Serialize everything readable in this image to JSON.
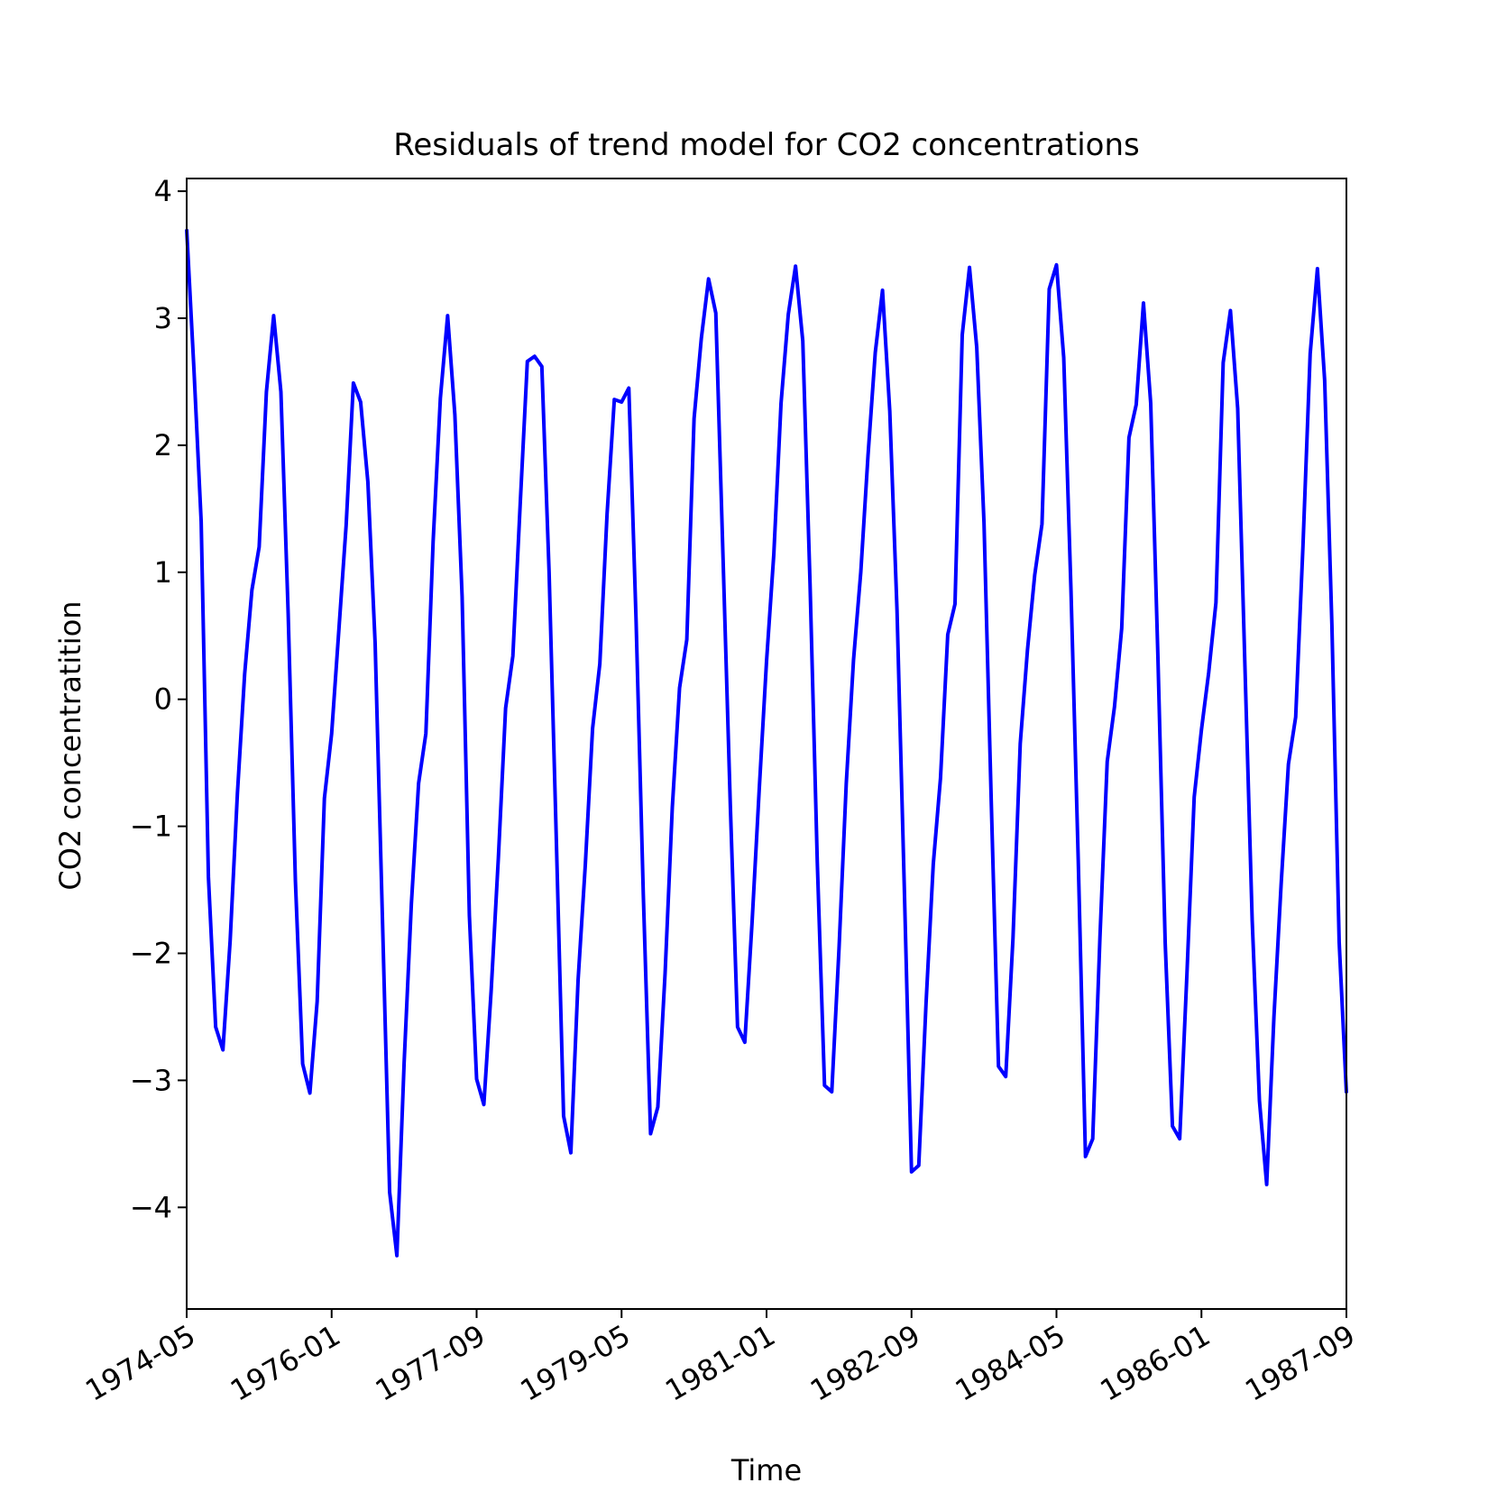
{
  "chart_data": {
    "type": "line",
    "title": "Residuals of trend model for CO2 concentrations",
    "xlabel": "Time",
    "ylabel": "CO2 concentratition",
    "xlim": [
      "1974-05",
      "1987-09"
    ],
    "ylim": [
      -4.8,
      4.1
    ],
    "yticks": [
      4,
      3,
      2,
      1,
      0,
      -1,
      -2,
      -3,
      -4
    ],
    "ytick_labels": [
      "4",
      "3",
      "2",
      "1",
      "0",
      "−1",
      "−2",
      "−3",
      "−4"
    ],
    "xticks": [
      "1974-05",
      "1976-01",
      "1977-09",
      "1979-05",
      "1981-01",
      "1982-09",
      "1984-05",
      "1986-01",
      "1987-09"
    ],
    "xtick_labels": [
      "1974-05",
      "1976-01",
      "1977-09",
      "1979-05",
      "1981-01",
      "1982-09",
      "1984-05",
      "1986-01",
      "1987-09"
    ],
    "grid": false,
    "series": [
      {
        "color": "#0000ff",
        "x": [
          "1974-05",
          "1974-06",
          "1974-07",
          "1974-08",
          "1974-09",
          "1974-10",
          "1974-11",
          "1974-12",
          "1975-01",
          "1975-02",
          "1975-03",
          "1975-04",
          "1975-05",
          "1975-06",
          "1975-07",
          "1975-08",
          "1975-09",
          "1975-10",
          "1975-11",
          "1975-12",
          "1976-01",
          "1976-02",
          "1976-03",
          "1976-04",
          "1976-05",
          "1976-06",
          "1976-07",
          "1976-08",
          "1976-09",
          "1976-10",
          "1976-11",
          "1976-12",
          "1977-01",
          "1977-02",
          "1977-03",
          "1977-04",
          "1977-05",
          "1977-06",
          "1977-07",
          "1977-08",
          "1977-09",
          "1977-10",
          "1977-11",
          "1977-12",
          "1978-01",
          "1978-02",
          "1978-03",
          "1978-04",
          "1978-05",
          "1978-06",
          "1978-07",
          "1978-08",
          "1978-09",
          "1978-10",
          "1978-11",
          "1978-12",
          "1979-01",
          "1979-02",
          "1979-03",
          "1979-04",
          "1979-05",
          "1979-06",
          "1979-07",
          "1979-08",
          "1979-09",
          "1979-10",
          "1979-11",
          "1979-12",
          "1980-01",
          "1980-02",
          "1980-03",
          "1980-04",
          "1980-05",
          "1980-06",
          "1980-07",
          "1980-08",
          "1980-09",
          "1980-10",
          "1980-11",
          "1980-12",
          "1981-01",
          "1981-02",
          "1981-03",
          "1981-04",
          "1981-05",
          "1981-06",
          "1981-07",
          "1981-08",
          "1981-09",
          "1981-10",
          "1981-11",
          "1981-12",
          "1982-01",
          "1982-02",
          "1982-03",
          "1982-04",
          "1982-05",
          "1982-06",
          "1982-07",
          "1982-08",
          "1982-09",
          "1982-10",
          "1982-11",
          "1982-12",
          "1983-01",
          "1983-02",
          "1983-03",
          "1983-04",
          "1983-05",
          "1983-06",
          "1983-07",
          "1983-08",
          "1983-09",
          "1983-10",
          "1983-11",
          "1983-12",
          "1984-01",
          "1984-02",
          "1984-03",
          "1984-04",
          "1984-05",
          "1984-06",
          "1984-07",
          "1984-08",
          "1984-09",
          "1984-10",
          "1984-11",
          "1984-12",
          "1985-01",
          "1985-02",
          "1985-03",
          "1985-04",
          "1985-05",
          "1985-06",
          "1985-07",
          "1985-08",
          "1985-09",
          "1985-10",
          "1985-11",
          "1985-12",
          "1986-01",
          "1986-02",
          "1986-03",
          "1986-04",
          "1986-05",
          "1986-06",
          "1986-07",
          "1986-08",
          "1986-09",
          "1986-10",
          "1986-11",
          "1986-12",
          "1987-01",
          "1987-02",
          "1987-03",
          "1987-04",
          "1987-05",
          "1987-06",
          "1987-07",
          "1987-08",
          "1987-09"
        ],
        "y": [
          3.7,
          2.6,
          1.4,
          -1.4,
          -2.58,
          -2.76,
          -1.9,
          -0.74,
          0.2,
          0.86,
          1.2,
          2.42,
          3.02,
          2.42,
          0.68,
          -1.43,
          -2.87,
          -3.1,
          -2.38,
          -0.78,
          -0.27,
          0.55,
          1.37,
          2.49,
          2.34,
          1.71,
          0.44,
          -1.71,
          -3.88,
          -4.38,
          -2.86,
          -1.61,
          -0.66,
          -0.27,
          1.24,
          2.37,
          3.02,
          2.24,
          0.81,
          -1.7,
          -2.99,
          -3.19,
          -2.3,
          -1.25,
          -0.07,
          0.34,
          1.52,
          2.66,
          2.7,
          2.62,
          1.0,
          -1.11,
          -3.28,
          -3.57,
          -2.21,
          -1.3,
          -0.23,
          0.28,
          1.46,
          2.36,
          2.34,
          2.45,
          0.62,
          -1.54,
          -3.42,
          -3.21,
          -2.16,
          -0.85,
          0.09,
          0.47,
          2.21,
          2.84,
          3.31,
          3.04,
          1.11,
          -0.83,
          -2.58,
          -2.7,
          -1.76,
          -0.7,
          0.3,
          1.14,
          2.33,
          3.03,
          3.41,
          2.82,
          0.91,
          -1.28,
          -3.04,
          -3.09,
          -1.96,
          -0.66,
          0.31,
          1.0,
          1.92,
          2.73,
          3.22,
          2.27,
          0.7,
          -1.47,
          -3.72,
          -3.67,
          -2.4,
          -1.3,
          -0.62,
          0.51,
          0.75,
          2.87,
          3.4,
          2.77,
          1.39,
          -0.8,
          -2.89,
          -2.97,
          -1.88,
          -0.35,
          0.39,
          0.98,
          1.38,
          3.23,
          3.42,
          2.69,
          0.86,
          -1.26,
          -3.6,
          -3.46,
          -1.87,
          -0.49,
          -0.06,
          0.56,
          2.06,
          2.32,
          3.12,
          2.33,
          0.32,
          -1.92,
          -3.36,
          -3.46,
          -2.16,
          -0.77,
          -0.24,
          0.21,
          0.76,
          2.65,
          3.06,
          2.29,
          0.26,
          -1.74,
          -3.16,
          -3.82,
          -2.5,
          -1.45,
          -0.51,
          -0.14,
          1.2,
          2.72,
          3.39,
          2.51,
          0.58,
          -1.91,
          -3.1
        ]
      }
    ]
  }
}
